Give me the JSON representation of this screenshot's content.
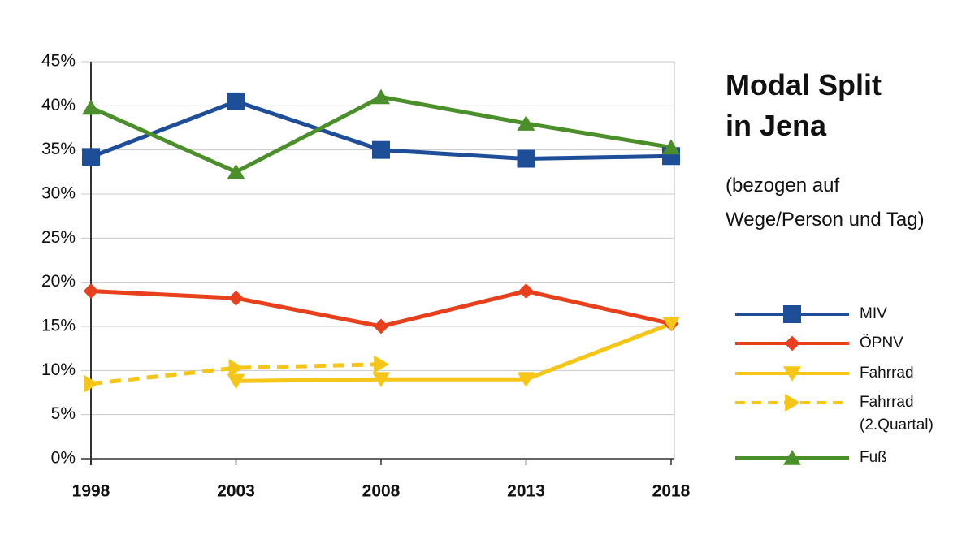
{
  "chart_data": {
    "type": "line",
    "title": "Modal Split in Jena",
    "subtitle": "(bezogen auf Wege/Person und Tag)",
    "categories": [
      "1998",
      "2003",
      "2008",
      "2013",
      "2018"
    ],
    "ylim": [
      0,
      45
    ],
    "yticks": [
      {
        "value": 0,
        "label": "0%"
      },
      {
        "value": 5,
        "label": "5%"
      },
      {
        "value": 10,
        "label": "10%"
      },
      {
        "value": 15,
        "label": "15%"
      },
      {
        "value": 20,
        "label": "20%"
      },
      {
        "value": 25,
        "label": "25%"
      },
      {
        "value": 30,
        "label": "30%"
      },
      {
        "value": 35,
        "label": "35%"
      },
      {
        "value": 40,
        "label": "40%"
      },
      {
        "value": 45,
        "label": "45%"
      }
    ],
    "grid": true,
    "series": [
      {
        "name": "MIV",
        "color": "#1f4e99",
        "marker": "square",
        "values": [
          34.2,
          40.5,
          35.0,
          34.0,
          34.3
        ]
      },
      {
        "name": "ÖPNV",
        "color": "#e8401c",
        "marker": "diamond",
        "values": [
          19.0,
          18.2,
          15.0,
          19.0,
          15.3
        ]
      },
      {
        "name": "Fahrrad",
        "color": "#f5c518",
        "marker": "triangle-down",
        "values": [
          null,
          8.8,
          9.0,
          9.0,
          15.3
        ]
      },
      {
        "name": "Fahrrad (2.Quartal)",
        "color": "#f5c518",
        "marker": "triangle-right",
        "dashed": true,
        "values": [
          8.5,
          10.3,
          10.7,
          null,
          null
        ]
      },
      {
        "name": "Fuß",
        "color": "#4a8f2a",
        "marker": "triangle-up",
        "values": [
          39.8,
          32.5,
          41.0,
          38.0,
          35.3
        ]
      }
    ]
  }
}
